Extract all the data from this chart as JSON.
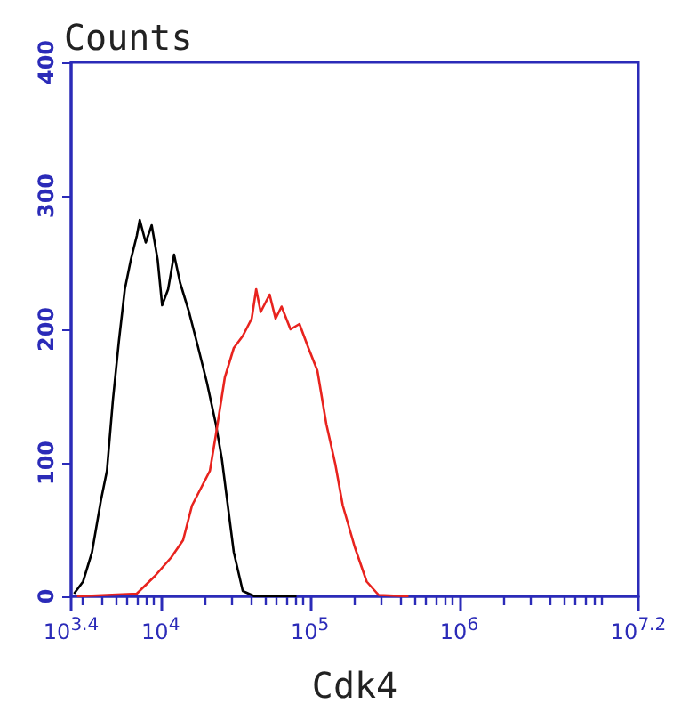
{
  "chart_data": {
    "type": "line",
    "xlabel": "Cdk4",
    "ylabel": "Counts",
    "log": "x",
    "xlim": [
      2512,
      15850000
    ],
    "xticks": [
      {
        "value": 2512,
        "label": "10$^{3.4}$"
      },
      {
        "value": 10000,
        "label": "10$^{4}$"
      },
      {
        "value": 100000,
        "label": "10$^{5}$"
      },
      {
        "value": 1000000,
        "label": "10$^{6}$"
      },
      {
        "value": 15850000,
        "label": "10$^{7.2}$"
      }
    ],
    "ylim": [
      0,
      400
    ],
    "yticks": [
      0,
      100,
      200,
      300,
      400
    ],
    "grid": false,
    "marker": "none",
    "line_style": "solid",
    "series": [
      {
        "color": "#000000",
        "x": [
          2630,
          3020,
          3467,
          3981,
          4365,
          4786,
          5248,
          5754,
          6310,
          6918,
          7244,
          7943,
          8710,
          9550,
          10230,
          11220,
          12300,
          13490,
          15490,
          17780,
          20420,
          23440,
          25700,
          28180,
          30900,
          35480,
          42660,
          81280
        ],
        "values": [
          2,
          11,
          33,
          72,
          94,
          147,
          191,
          230,
          252,
          270,
          282,
          265,
          278,
          252,
          218,
          230,
          256,
          235,
          213,
          187,
          160,
          129,
          103,
          68,
          33,
          4,
          0,
          0
        ]
      },
      {
        "color": "#e8231e",
        "x": [
          2754,
          6918,
          9120,
          11750,
          14130,
          16220,
          18620,
          21380,
          23440,
          26920,
          30900,
          35480,
          40740,
          43650,
          46770,
          53700,
          58880,
          64570,
          74130,
          85110,
          97720,
          112200,
          128800,
          147900,
          166000,
          199500,
          239900,
          288400,
          457100
        ],
        "values": [
          0,
          2,
          15,
          29,
          42,
          68,
          81,
          94,
          121,
          164,
          186,
          195,
          208,
          230,
          213,
          226,
          208,
          217,
          200,
          204,
          186,
          169,
          129,
          99,
          68,
          37,
          11,
          1,
          0
        ]
      }
    ]
  }
}
